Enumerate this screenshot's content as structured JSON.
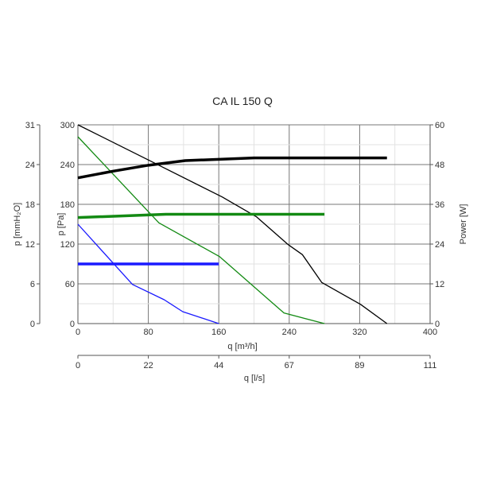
{
  "chart_data": {
    "type": "line",
    "title": "CA IL 150 Q",
    "xlabel": "q [m³/h]",
    "xlabel2": "q [l/s]",
    "ylabel": "p [Pa]",
    "ylabel_left": "p [mmH₂O]",
    "ylabel_right": "Power [W]",
    "xlim": [
      0,
      400
    ],
    "ylim": [
      0,
      300
    ],
    "y2lim": [
      0,
      60
    ],
    "grid": true,
    "x_ticks": [
      "0",
      "80",
      "160",
      "240",
      "320",
      "400"
    ],
    "x2_ticks": [
      "0",
      "22",
      "44",
      "67",
      "89",
      "111"
    ],
    "y_ticks": [
      "0",
      "60",
      "120",
      "180",
      "240",
      "300"
    ],
    "y_left_ticks": [
      "0",
      "6",
      "12",
      "18",
      "24",
      "31"
    ],
    "y_right_ticks": [
      "0",
      "12",
      "24",
      "36",
      "48",
      "60"
    ],
    "series": [
      {
        "name": "pressure-high",
        "axis": "pa",
        "color": "#000000",
        "width": 1.3,
        "x": [
          0,
          80,
          164,
          203,
          239,
          255,
          277,
          321,
          351
        ],
        "y": [
          300,
          247,
          191,
          161,
          119,
          104,
          62,
          29,
          0
        ]
      },
      {
        "name": "pressure-medium",
        "axis": "pa",
        "color": "#138a13",
        "width": 1.3,
        "x": [
          0,
          92,
          161,
          234,
          280
        ],
        "y": [
          282,
          152,
          101,
          16,
          0
        ]
      },
      {
        "name": "pressure-low",
        "axis": "pa",
        "color": "#1a1aff",
        "width": 1.3,
        "x": [
          0,
          62,
          98,
          119,
          160
        ],
        "y": [
          150,
          59,
          36,
          18,
          0
        ]
      },
      {
        "name": "power-high",
        "axis": "w",
        "color": "#000000",
        "width": 3.5,
        "x": [
          0,
          40,
          80,
          122,
          200,
          351
        ],
        "y": [
          44,
          46,
          47.8,
          49.2,
          50,
          50
        ]
      },
      {
        "name": "power-medium",
        "axis": "w",
        "color": "#138a13",
        "width": 3.5,
        "x": [
          0,
          100,
          280
        ],
        "y": [
          32,
          33,
          33
        ]
      },
      {
        "name": "power-low",
        "axis": "w",
        "color": "#1a1aff",
        "width": 3.5,
        "x": [
          0,
          160
        ],
        "y": [
          18,
          18
        ]
      }
    ]
  }
}
